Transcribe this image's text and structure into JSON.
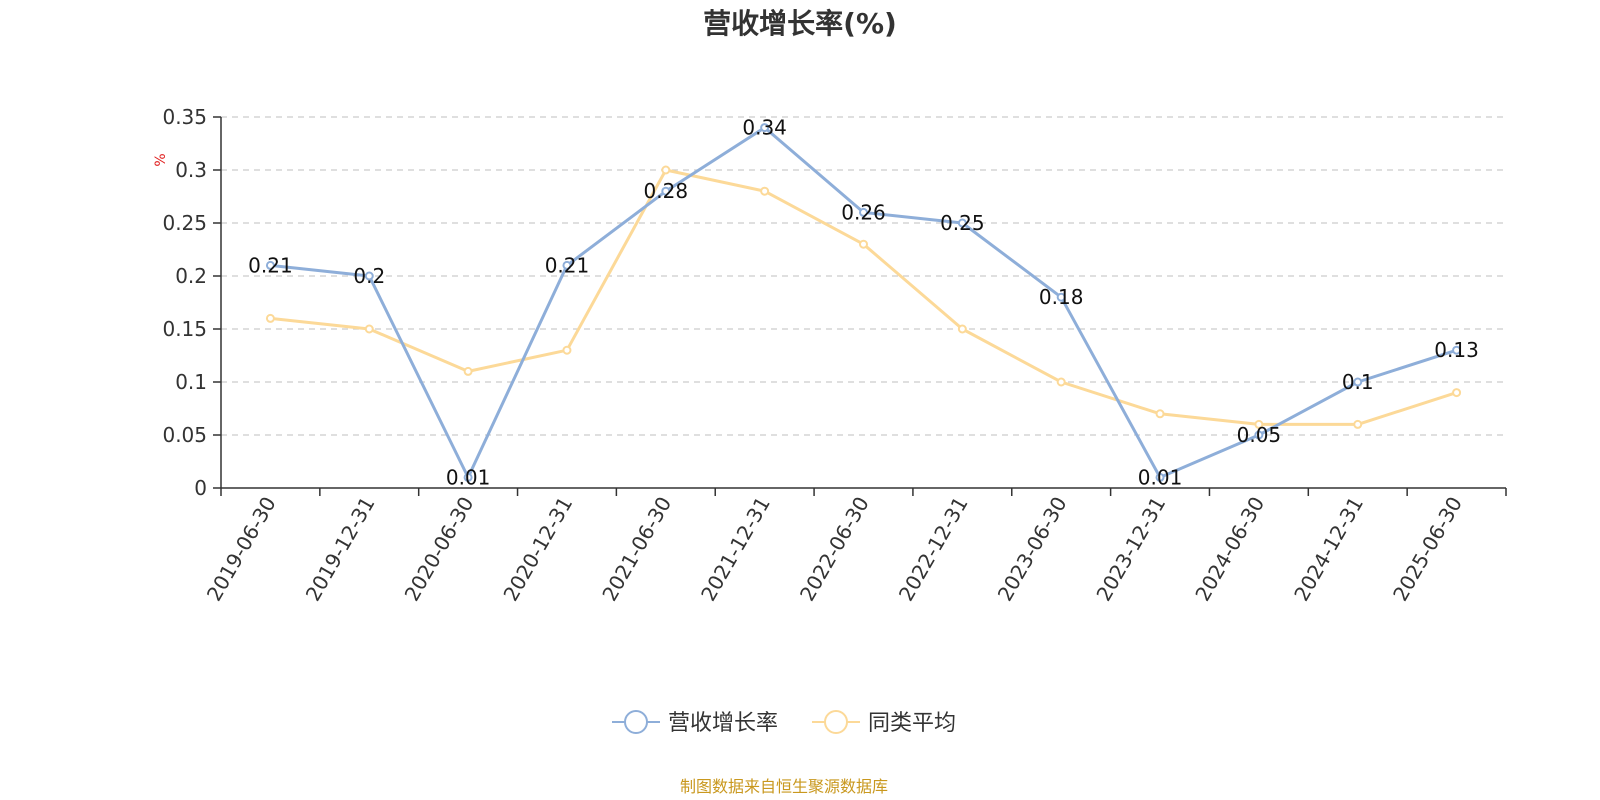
{
  "chart_data": {
    "type": "line",
    "title": "营收增长率(%)",
    "ylabel": "%",
    "xlabel": "",
    "ylim": [
      0,
      0.35
    ],
    "yticks": [
      "0",
      "0.05",
      "0.1",
      "0.15",
      "0.2",
      "0.25",
      "0.3",
      "0.35"
    ],
    "grid": true,
    "legend_position": "bottom",
    "categories": [
      "2019-06-30",
      "2019-12-31",
      "2020-06-30",
      "2020-12-31",
      "2021-06-30",
      "2021-12-31",
      "2022-06-30",
      "2022-12-31",
      "2023-06-30",
      "2023-12-31",
      "2024-06-30",
      "2024-12-31",
      "2025-06-30"
    ],
    "series": [
      {
        "name": "营收增长率",
        "color": "#8eaed9",
        "values": [
          0.21,
          0.2,
          0.01,
          0.21,
          0.28,
          0.34,
          0.26,
          0.25,
          0.18,
          0.01,
          0.05,
          0.1,
          0.13
        ],
        "labels": [
          "0.21",
          "0.2",
          "0.01",
          "0.21",
          "0.28",
          "0.34",
          "0.26",
          "0.25",
          "0.18",
          "0.01",
          "0.05",
          "0.1",
          "0.13"
        ]
      },
      {
        "name": "同类平均",
        "color": "#fcd998",
        "values": [
          0.16,
          0.15,
          0.11,
          0.13,
          0.3,
          0.28,
          0.23,
          0.15,
          0.1,
          0.07,
          0.06,
          0.06,
          0.09
        ]
      }
    ],
    "source": "制图数据来自恒生聚源数据库"
  }
}
